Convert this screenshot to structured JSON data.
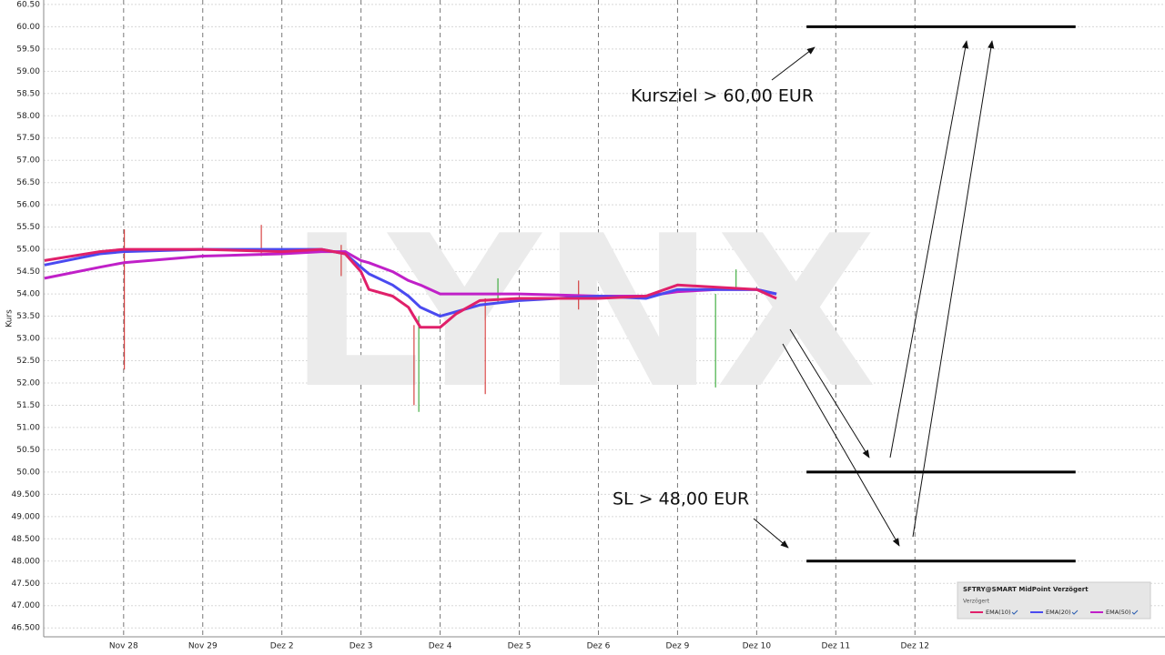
{
  "chart_data": {
    "type": "line",
    "y_label": "Kurs",
    "watermark": "LYNX",
    "xlim": [
      -1.01,
      13.16
    ],
    "xticks": [
      {
        "value": 0,
        "label": "Nov 28"
      },
      {
        "value": 1,
        "label": "Nov 29"
      },
      {
        "value": 2,
        "label": "Dez 2"
      },
      {
        "value": 3,
        "label": "Dez 3"
      },
      {
        "value": 4,
        "label": "Dez 4"
      },
      {
        "value": 5,
        "label": "Dez 5"
      },
      {
        "value": 6,
        "label": "Dez 6"
      },
      {
        "value": 7,
        "label": "Dez 9"
      },
      {
        "value": 8,
        "label": "Dez 10"
      },
      {
        "value": 9,
        "label": "Dez 11"
      },
      {
        "value": 10,
        "label": "Dez 12"
      }
    ],
    "ylim": [
      46.3,
      60.6
    ],
    "yticks": [
      {
        "value": 46.5,
        "label": "46.500"
      },
      {
        "value": 47,
        "label": "47.000"
      },
      {
        "value": 47.5,
        "label": "47.500"
      },
      {
        "value": 48,
        "label": "48.000"
      },
      {
        "value": 48.5,
        "label": "48.500"
      },
      {
        "value": 49,
        "label": "49.000"
      },
      {
        "value": 49.5,
        "label": "49.500"
      },
      {
        "value": 50,
        "label": "50.00"
      },
      {
        "value": 50.5,
        "label": "50.50"
      },
      {
        "value": 51,
        "label": "51.00"
      },
      {
        "value": 51.5,
        "label": "51.50"
      },
      {
        "value": 52,
        "label": "52.00"
      },
      {
        "value": 52.5,
        "label": "52.50"
      },
      {
        "value": 53,
        "label": "53.00"
      },
      {
        "value": 53.5,
        "label": "53.50"
      },
      {
        "value": 54,
        "label": "54.00"
      },
      {
        "value": 54.5,
        "label": "54.50"
      },
      {
        "value": 55,
        "label": "55.00"
      },
      {
        "value": 55.5,
        "label": "55.50"
      },
      {
        "value": 56,
        "label": "56.00"
      },
      {
        "value": 56.5,
        "label": "56.50"
      },
      {
        "value": 57,
        "label": "57.00"
      },
      {
        "value": 57.5,
        "label": "57.50"
      },
      {
        "value": 58,
        "label": "58.00"
      },
      {
        "value": 58.5,
        "label": "58.50"
      },
      {
        "value": 59,
        "label": "59.00"
      },
      {
        "value": 59.5,
        "label": "59.50"
      },
      {
        "value": 60,
        "label": "60.00"
      },
      {
        "value": 60.5,
        "label": "60.50"
      }
    ],
    "grid": true,
    "x": [
      -1,
      -0.3,
      0,
      1,
      2,
      2.5,
      2.8,
      3.0,
      3.1,
      3.4,
      3.6,
      3.75,
      4.0,
      4.2,
      4.5,
      5,
      6,
      6.6,
      7,
      7.5,
      8,
      8.25
    ],
    "series": [
      {
        "name": "EMA(10)",
        "color": "#e0206a",
        "values": [
          54.75,
          54.95,
          55.0,
          55.0,
          54.95,
          55.0,
          54.9,
          54.5,
          54.1,
          53.95,
          53.7,
          53.25,
          53.25,
          53.55,
          53.85,
          53.9,
          53.9,
          53.95,
          54.2,
          54.15,
          54.1,
          53.9
        ]
      },
      {
        "name": "EMA(20)",
        "color": "#4a4af0",
        "values": [
          54.65,
          54.9,
          54.95,
          55.0,
          55.0,
          55.0,
          54.9,
          54.6,
          54.45,
          54.2,
          53.95,
          53.7,
          53.5,
          53.6,
          53.75,
          53.85,
          53.95,
          53.9,
          54.1,
          54.1,
          54.1,
          54.0
        ]
      },
      {
        "name": "EMA(50)",
        "color": "#c020c8",
        "values": [
          54.35,
          54.6,
          54.7,
          54.85,
          54.9,
          54.95,
          54.95,
          54.75,
          54.7,
          54.5,
          54.3,
          54.2,
          54.0,
          54.0,
          54.0,
          54.0,
          53.95,
          53.95,
          54.05,
          54.1,
          54.1,
          54.0
        ]
      }
    ],
    "price_ranges": [
      {
        "x": 0.01,
        "high": 55.45,
        "low": 52.3,
        "color": "#d02020"
      },
      {
        "x": 1.74,
        "high": 55.55,
        "low": 54.85,
        "color": "#d02020"
      },
      {
        "x": 2.75,
        "high": 55.1,
        "low": 54.4,
        "color": "#d02020"
      },
      {
        "x": 3.67,
        "high": 53.3,
        "low": 51.5,
        "color": "#d02020"
      },
      {
        "x": 3.73,
        "high": 53.5,
        "low": 51.35,
        "color": "#20a020"
      },
      {
        "x": 4.57,
        "high": 53.9,
        "low": 51.75,
        "color": "#d02020"
      },
      {
        "x": 4.73,
        "high": 54.35,
        "low": 53.8,
        "color": "#20a020"
      },
      {
        "x": 5.75,
        "high": 54.3,
        "low": 53.65,
        "color": "#d02020"
      },
      {
        "x": 7.48,
        "high": 54.0,
        "low": 51.9,
        "color": "#20a020"
      },
      {
        "x": 7.74,
        "high": 54.55,
        "low": 54.1,
        "color": "#20a020"
      }
    ],
    "levels": [
      60,
      50,
      48
    ],
    "level_x": [
      8.63,
      12.03
    ],
    "annotations": [
      "Kursziel > 60,00 EUR",
      "SL > 48,00 EUR"
    ],
    "legend_title": "SFTRY@SMART MidPoint Verzögert",
    "legend_subtitle": "Verzögert"
  }
}
